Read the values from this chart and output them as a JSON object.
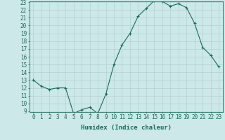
{
  "x": [
    0,
    1,
    2,
    3,
    4,
    5,
    6,
    7,
    8,
    9,
    10,
    11,
    12,
    13,
    14,
    15,
    16,
    17,
    18,
    19,
    20,
    21,
    22,
    23
  ],
  "y": [
    13,
    12.2,
    11.8,
    12,
    12,
    8.7,
    9.2,
    9.5,
    8.7,
    11.2,
    15,
    17.5,
    19,
    21.2,
    22.2,
    23.2,
    23.1,
    22.5,
    22.8,
    22.3,
    20.3,
    17.2,
    16.2,
    14.7
  ],
  "line_color": "#1a6b5a",
  "marker": "+",
  "marker_color": "#1a6b5a",
  "bg_color": "#cce8e8",
  "grid_color": "#aacccc",
  "xlabel": "Humidex (Indice chaleur)",
  "ylim": [
    9,
    23
  ],
  "xlim": [
    -0.5,
    23.5
  ],
  "yticks": [
    9,
    10,
    11,
    12,
    13,
    14,
    15,
    16,
    17,
    18,
    19,
    20,
    21,
    22,
    23
  ],
  "xticks": [
    0,
    1,
    2,
    3,
    4,
    5,
    6,
    7,
    8,
    9,
    10,
    11,
    12,
    13,
    14,
    15,
    16,
    17,
    18,
    19,
    20,
    21,
    22,
    23
  ],
  "tick_color": "#1a6b5a",
  "label_fontsize": 6.5,
  "tick_fontsize": 5.5
}
